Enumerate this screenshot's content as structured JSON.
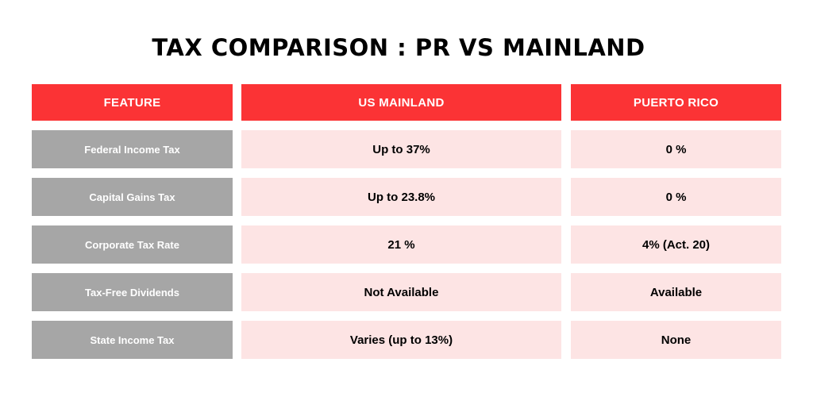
{
  "title": "TAX COMPARISON : PR VS MAINLAND",
  "table": {
    "headers": [
      "FEATURE",
      "US MAINLAND",
      "PUERTO RICO"
    ],
    "rows": [
      [
        "Federal Income Tax",
        "Up to 37%",
        "0 %"
      ],
      [
        "Capital Gains Tax",
        "Up to 23.8%",
        "0 %"
      ],
      [
        "Corporate Tax Rate",
        "21 %",
        "4% (Act. 20)"
      ],
      [
        "Tax-Free Dividends",
        "Not Available",
        "Available"
      ],
      [
        "State Income Tax",
        "Varies (up to 13%)",
        "None"
      ]
    ]
  },
  "colors": {
    "header_bg": "#fb3335",
    "feature_bg": "#a6a6a6",
    "value_bg": "#fde4e4"
  }
}
